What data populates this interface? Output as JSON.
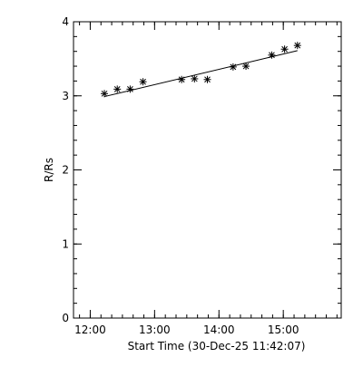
{
  "chart_data": {
    "type": "scatter",
    "title": "",
    "xlabel": "Start Time (30-Dec-25 11:42:07)",
    "ylabel": "R/Rs",
    "x_unit": "hours",
    "xlim": [
      11.74,
      15.9
    ],
    "ylim": [
      0,
      4
    ],
    "x_ticks": [
      {
        "value": 12.0,
        "label": "12:00"
      },
      {
        "value": 13.0,
        "label": "13:00"
      },
      {
        "value": 14.0,
        "label": "14:00"
      },
      {
        "value": 15.0,
        "label": "15:00"
      }
    ],
    "x_minor_step": 0.1667,
    "y_ticks": [
      {
        "value": 0,
        "label": "0"
      },
      {
        "value": 1,
        "label": "1"
      },
      {
        "value": 2,
        "label": "2"
      },
      {
        "value": 3,
        "label": "3"
      },
      {
        "value": 4,
        "label": "4"
      }
    ],
    "y_minor_step": 0.2,
    "grid": false,
    "marker": "asterisk",
    "series": [
      {
        "x": [
          12.22,
          12.42,
          12.62,
          12.82,
          13.42,
          13.62,
          13.82,
          14.22,
          14.42,
          14.82,
          15.02,
          15.22
        ],
        "y": [
          3.03,
          3.09,
          3.09,
          3.19,
          3.22,
          3.23,
          3.22,
          3.39,
          3.4,
          3.55,
          3.63,
          3.68
        ]
      }
    ],
    "fit_line": {
      "x": [
        12.22,
        15.22
      ],
      "y": [
        2.99,
        3.61
      ]
    }
  }
}
